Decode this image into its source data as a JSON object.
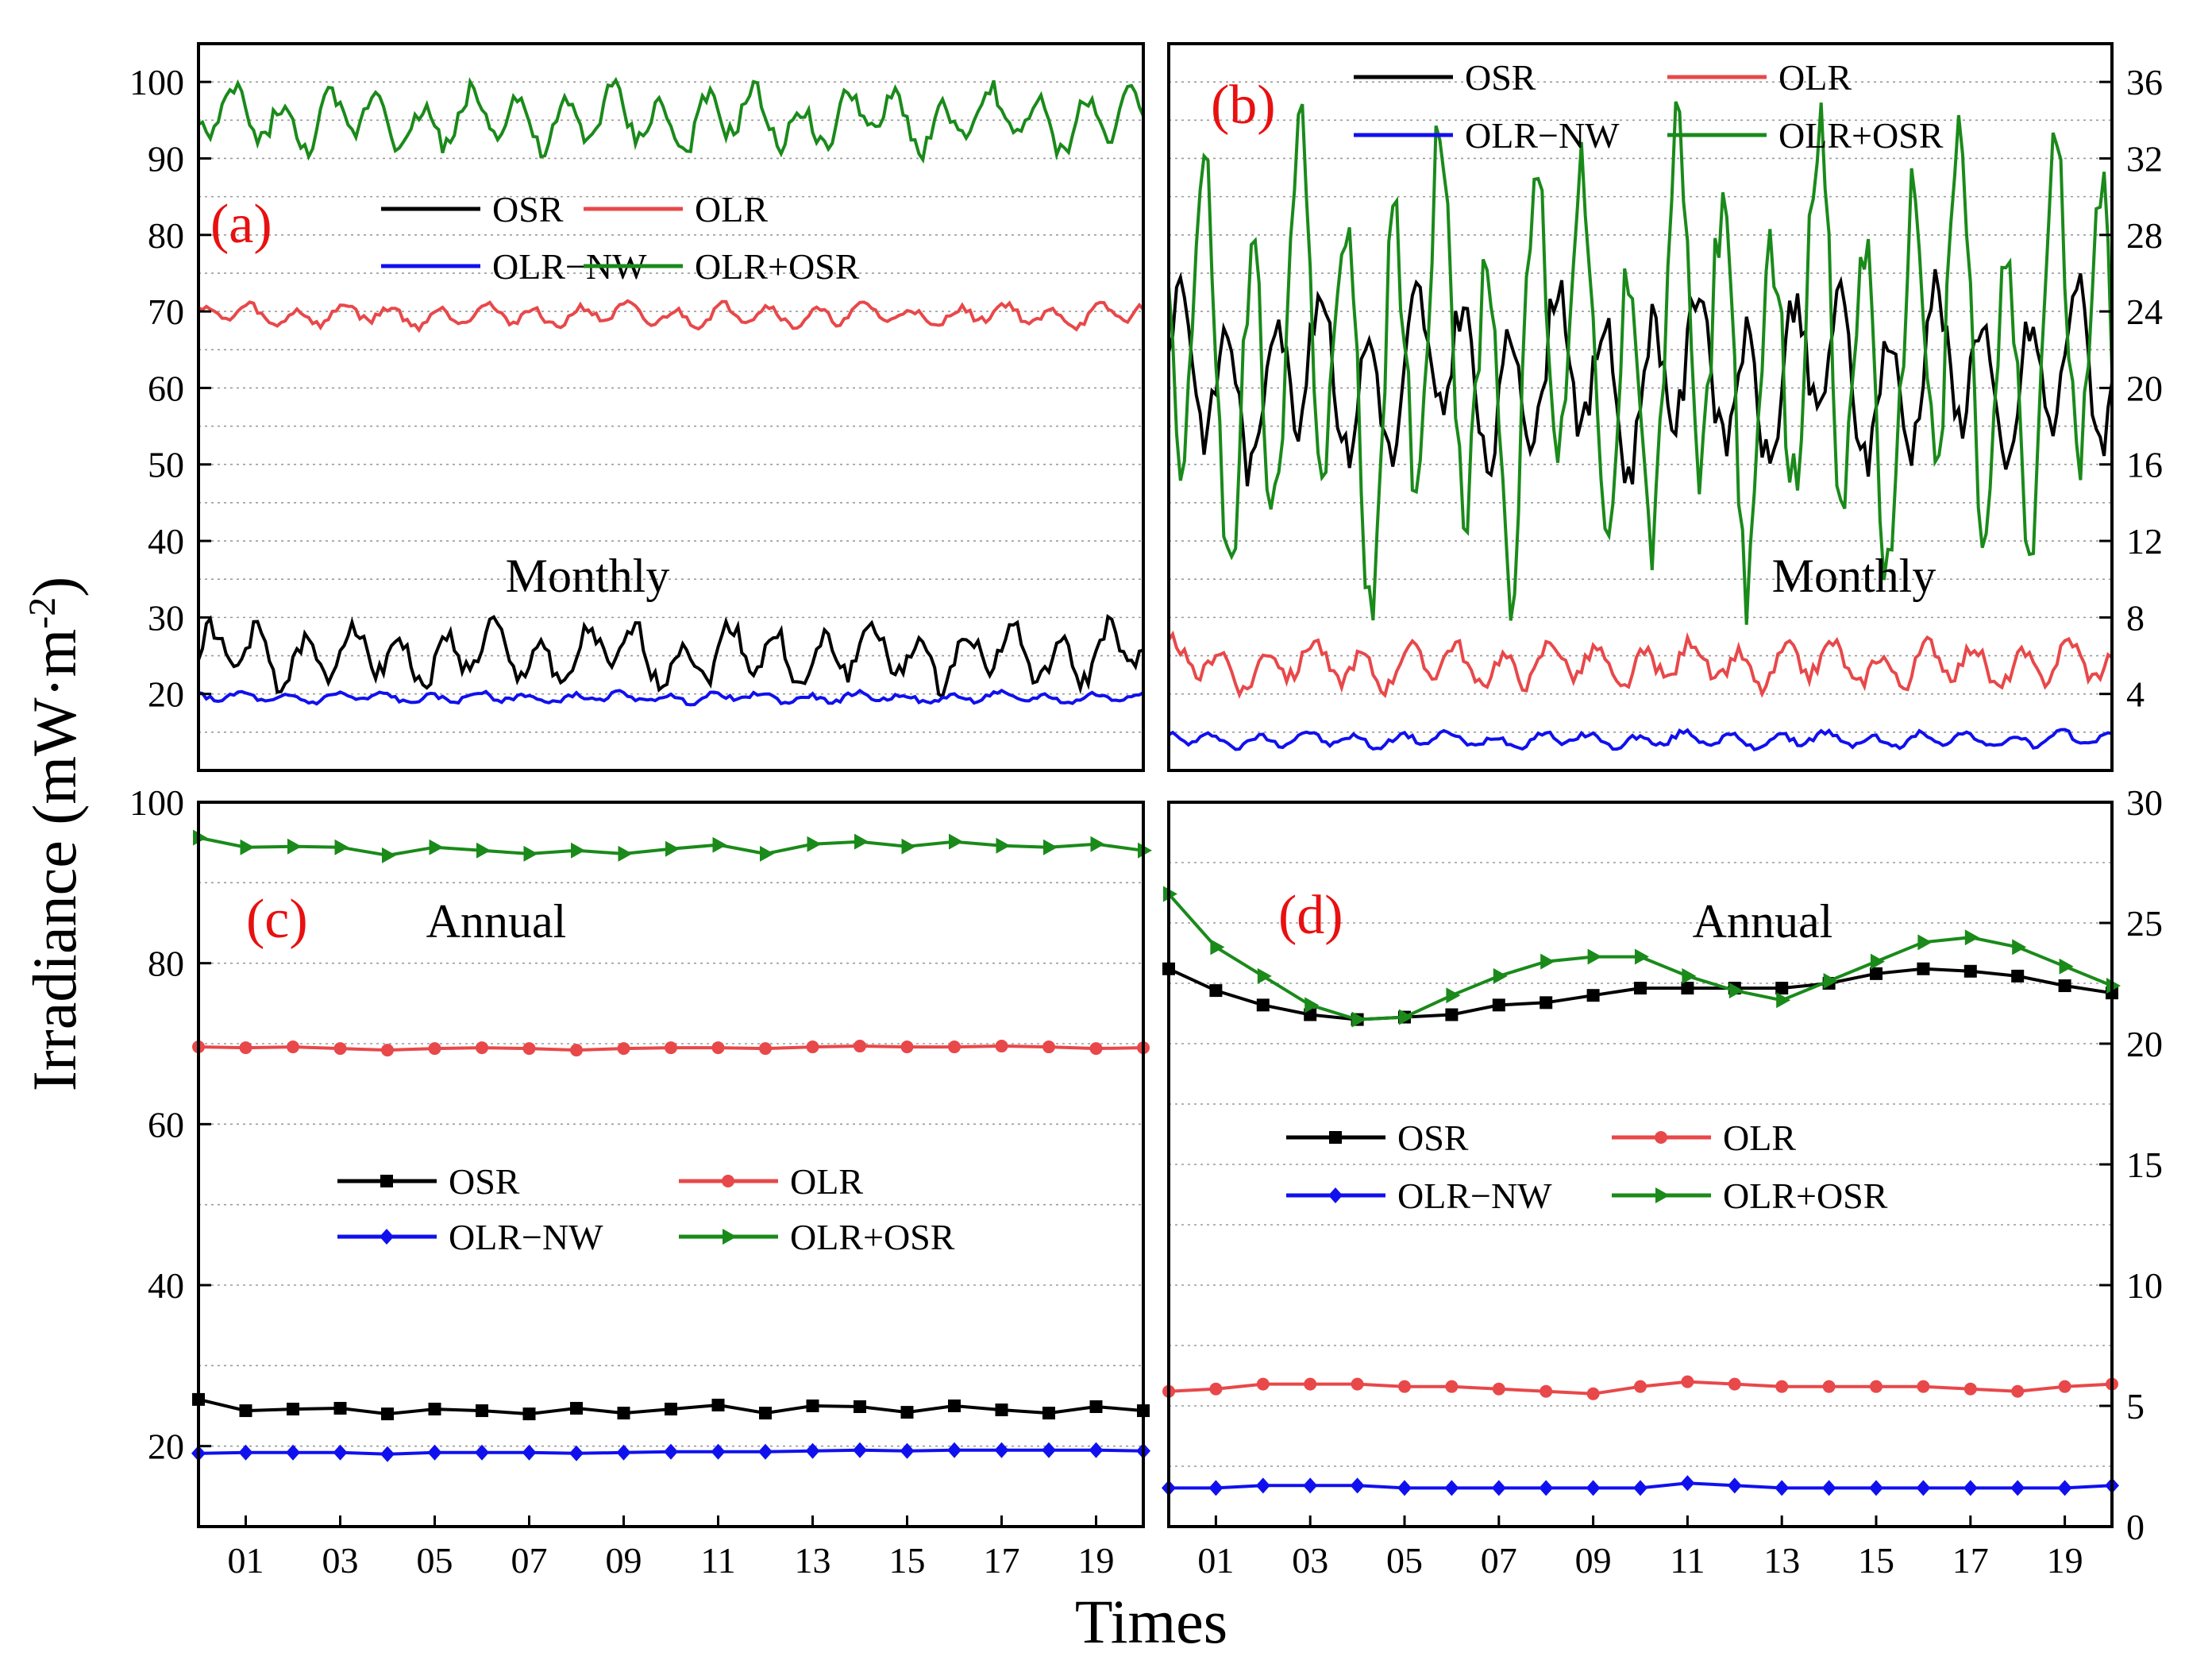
{
  "figure": {
    "ylabel": "Irradiance (mW·m",
    "ylabel_sup": "-2",
    "ylabel_close": ")",
    "xlabel": "Times"
  },
  "colors": {
    "OSR": "#000000",
    "OLR": "#e8484a",
    "OLR-NW": "#1010ee",
    "OLR+OSR": "#1a8a1a"
  },
  "chart_data": [
    {
      "panel": "a",
      "type": "line",
      "label": "(a)",
      "annotation": "Monthly",
      "ylim": [
        10,
        105
      ],
      "yticks": [
        20,
        30,
        40,
        50,
        60,
        70,
        80,
        90,
        100
      ],
      "ytick_labels": [
        "20",
        "30",
        "40",
        "50",
        "60",
        "70",
        "80",
        "90",
        "100"
      ],
      "x_range": [
        0,
        20
      ],
      "legend": [
        "OSR",
        "OLR",
        "OLR−NW",
        "OLR+OSR"
      ],
      "series": [
        {
          "name": "OSR",
          "mean": 25.0,
          "amp": 3.0,
          "noise": 1.3
        },
        {
          "name": "OLR",
          "mean": 69.5,
          "amp": 1.1,
          "noise": 0.5
        },
        {
          "name": "OLR−NW",
          "mean": 19.5,
          "amp": 0.5,
          "noise": 0.3
        },
        {
          "name": "OLR+OSR",
          "mean": 95.0,
          "amp": 3.0,
          "noise": 1.3
        }
      ]
    },
    {
      "panel": "b",
      "type": "line",
      "label": "(b)",
      "annotation": "Monthly",
      "ylim": [
        0,
        38
      ],
      "yticks": [
        4,
        8,
        12,
        16,
        20,
        24,
        28,
        32,
        36
      ],
      "ytick_labels": [
        "4",
        "8",
        "12",
        "16",
        "20",
        "24",
        "28",
        "32",
        "36"
      ],
      "x_range": [
        0,
        20
      ],
      "legend": [
        "OSR",
        "OLR",
        "OLR−NW",
        "OLR+OSR"
      ],
      "series": [
        {
          "name": "OSR",
          "mean": 20.5,
          "amp": 3.5,
          "noise": 1.2
        },
        {
          "name": "OLR",
          "mean": 5.5,
          "amp": 0.9,
          "noise": 0.4
        },
        {
          "name": "OLR−NW",
          "mean": 1.6,
          "amp": 0.3,
          "noise": 0.15
        },
        {
          "name": "OLR+OSR",
          "mean": 21.5,
          "amp": 8.5,
          "noise": 2.2
        }
      ]
    },
    {
      "panel": "c",
      "type": "line",
      "label": "(c)",
      "annotation": "Annual",
      "ylim": [
        10,
        100
      ],
      "yticks": [
        20,
        40,
        60,
        80,
        100
      ],
      "ytick_labels": [
        "20",
        "40",
        "60",
        "80",
        "100"
      ],
      "x": [
        0,
        1,
        2,
        3,
        4,
        5,
        6,
        7,
        8,
        9,
        10,
        11,
        12,
        13,
        14,
        15,
        16,
        17,
        18,
        19,
        20
      ],
      "xtick_labels": [
        "01",
        "03",
        "05",
        "07",
        "09",
        "11",
        "13",
        "15",
        "17",
        "19"
      ],
      "legend": [
        "OSR",
        "OLR",
        "OLR−NW",
        "OLR+OSR"
      ],
      "series": [
        {
          "name": "OSR",
          "marker": "square",
          "values": [
            25.8,
            24.4,
            24.6,
            24.7,
            24.0,
            24.6,
            24.4,
            24.0,
            24.7,
            24.1,
            24.6,
            25.1,
            24.1,
            25.0,
            24.9,
            24.2,
            25.0,
            24.5,
            24.1,
            24.9,
            24.4
          ]
        },
        {
          "name": "OLR",
          "marker": "circle",
          "values": [
            69.6,
            69.5,
            69.6,
            69.4,
            69.2,
            69.4,
            69.5,
            69.4,
            69.2,
            69.4,
            69.5,
            69.5,
            69.4,
            69.6,
            69.7,
            69.6,
            69.6,
            69.7,
            69.6,
            69.4,
            69.5
          ]
        },
        {
          "name": "OLR−NW",
          "marker": "diamond",
          "values": [
            19.1,
            19.2,
            19.2,
            19.2,
            19.0,
            19.2,
            19.2,
            19.2,
            19.1,
            19.2,
            19.3,
            19.3,
            19.3,
            19.4,
            19.5,
            19.4,
            19.5,
            19.5,
            19.5,
            19.5,
            19.4
          ]
        },
        {
          "name": "OLR+OSR",
          "marker": "triangle",
          "values": [
            95.6,
            94.4,
            94.5,
            94.4,
            93.4,
            94.4,
            94.0,
            93.6,
            94.0,
            93.6,
            94.2,
            94.7,
            93.6,
            94.8,
            95.1,
            94.5,
            95.1,
            94.6,
            94.4,
            94.8,
            94.0
          ]
        }
      ]
    },
    {
      "panel": "d",
      "type": "line",
      "label": "(d)",
      "annotation": "Annual",
      "ylim": [
        0,
        30
      ],
      "yticks": [
        0,
        5,
        10,
        15,
        20,
        25,
        30
      ],
      "ytick_labels": [
        "0",
        "5",
        "10",
        "15",
        "20",
        "25",
        "30"
      ],
      "x": [
        0,
        1,
        2,
        3,
        4,
        5,
        6,
        7,
        8,
        9,
        10,
        11,
        12,
        13,
        14,
        15,
        16,
        17,
        18,
        19,
        20
      ],
      "xtick_labels": [
        "01",
        "03",
        "05",
        "07",
        "09",
        "11",
        "13",
        "15",
        "17",
        "19"
      ],
      "legend": [
        "OSR",
        "OLR",
        "OLR−NW",
        "OLR+OSR"
      ],
      "series": [
        {
          "name": "OSR",
          "marker": "square",
          "values": [
            23.1,
            22.2,
            21.6,
            21.2,
            21.0,
            21.1,
            21.2,
            21.6,
            21.7,
            22.0,
            22.3,
            22.3,
            22.3,
            22.3,
            22.5,
            22.9,
            23.1,
            23.0,
            22.8,
            22.4,
            22.1
          ]
        },
        {
          "name": "OLR",
          "marker": "circle",
          "values": [
            5.6,
            5.7,
            5.9,
            5.9,
            5.9,
            5.8,
            5.8,
            5.7,
            5.6,
            5.5,
            5.8,
            6.0,
            5.9,
            5.8,
            5.8,
            5.8,
            5.8,
            5.7,
            5.6,
            5.8,
            5.9
          ]
        },
        {
          "name": "OLR−NW",
          "marker": "diamond",
          "values": [
            1.6,
            1.6,
            1.7,
            1.7,
            1.7,
            1.6,
            1.6,
            1.6,
            1.6,
            1.6,
            1.6,
            1.8,
            1.7,
            1.6,
            1.6,
            1.6,
            1.6,
            1.6,
            1.6,
            1.6,
            1.7
          ]
        },
        {
          "name": "OLR+OSR",
          "marker": "triangle",
          "values": [
            26.2,
            24.0,
            22.8,
            21.6,
            21.0,
            21.1,
            22.0,
            22.8,
            23.4,
            23.6,
            23.6,
            22.8,
            22.2,
            21.8,
            22.6,
            23.4,
            24.2,
            24.4,
            24.0,
            23.2,
            22.4
          ]
        }
      ]
    }
  ]
}
